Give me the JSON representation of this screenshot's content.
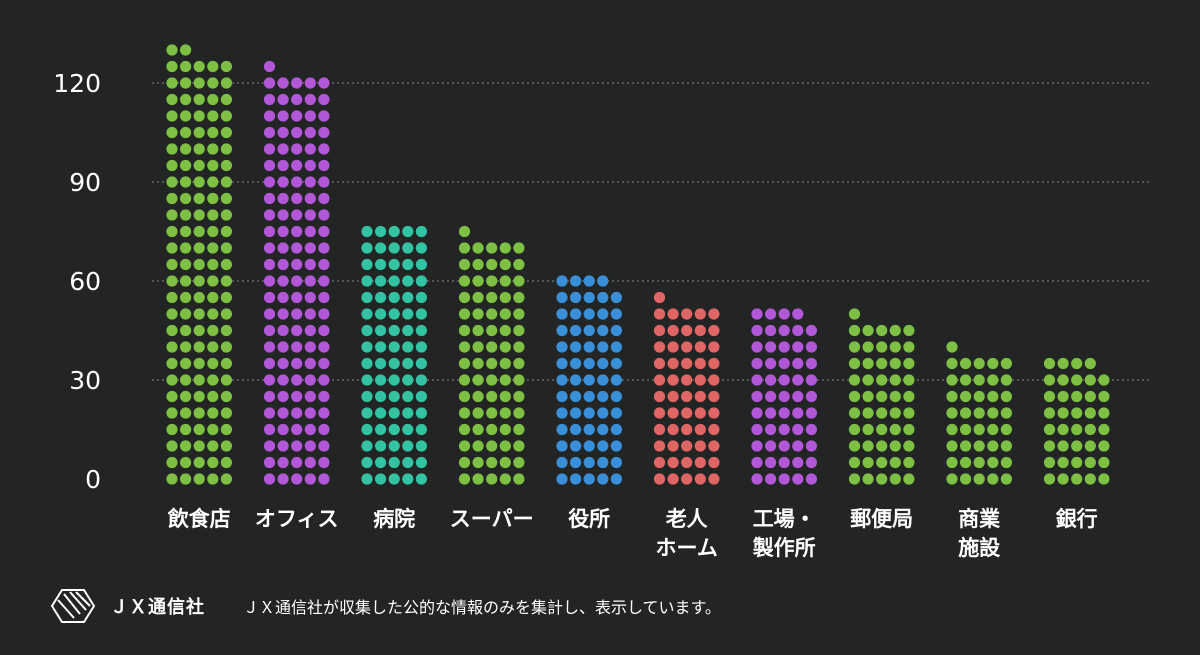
{
  "chart_data": {
    "type": "bar",
    "style": "dot-matrix",
    "categories": [
      [
        "飲食店"
      ],
      [
        "オフィス"
      ],
      [
        "病院"
      ],
      [
        "スーパー"
      ],
      [
        "役所"
      ],
      [
        "老人",
        "ホーム"
      ],
      [
        "工場・",
        "製作所"
      ],
      [
        "郵便局"
      ],
      [
        "商業",
        "施設"
      ],
      [
        "銀行"
      ]
    ],
    "values": [
      132,
      126,
      80,
      76,
      64,
      56,
      54,
      51,
      41,
      39
    ],
    "colors": [
      "#7dc043",
      "#b157d8",
      "#33c2a2",
      "#7dc043",
      "#3a8fd9",
      "#e06666",
      "#b157d8",
      "#7dc043",
      "#7dc043",
      "#7dc043"
    ],
    "yticks": [
      0,
      30,
      60,
      90,
      120
    ],
    "ylim": [
      0,
      135
    ],
    "grid": true,
    "gridline_color": "#8a8a8a",
    "background": "#232524"
  },
  "footer": {
    "brand": "ＪＸ通信社",
    "logo_icon": "jx-logo-icon",
    "note": "ＪＸ通信社が収集した公的な情報のみを集計し、表示しています。"
  }
}
